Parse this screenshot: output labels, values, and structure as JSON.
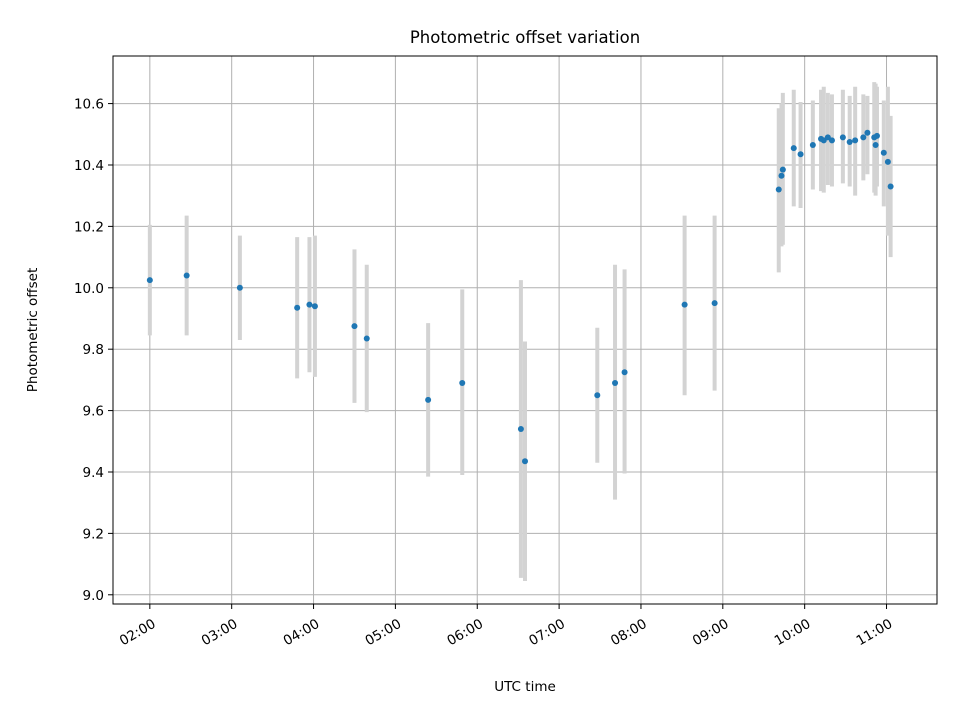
{
  "colors": {
    "point": "#1f77b4",
    "errorbar": "#d3d3d3",
    "grid": "#b0b0b0",
    "axes": "#000000",
    "background": "#ffffff"
  },
  "chart_data": {
    "type": "scatter",
    "title": "Photometric offset variation",
    "xlabel": "UTC time",
    "ylabel": "Photometric offset",
    "x_axis_type": "time",
    "xlim": [
      "01:33",
      "11:37"
    ],
    "ylim": [
      8.97,
      10.755
    ],
    "grid": true,
    "legend": "none",
    "x_ticks": [
      "02:00",
      "03:00",
      "04:00",
      "05:00",
      "06:00",
      "07:00",
      "08:00",
      "09:00",
      "10:00",
      "11:00"
    ],
    "y_ticks": [
      "9.0",
      "9.2",
      "9.4",
      "9.6",
      "9.8",
      "10.0",
      "10.2",
      "10.4",
      "10.6"
    ],
    "series": [
      {
        "points": [
          {
            "x": "02:00",
            "y": 10.025,
            "err_low": 9.845,
            "err_high": 10.205
          },
          {
            "x": "02:27",
            "y": 10.04,
            "err_low": 9.845,
            "err_high": 10.235
          },
          {
            "x": "03:06",
            "y": 10.0,
            "err_low": 9.83,
            "err_high": 10.17
          },
          {
            "x": "03:48",
            "y": 9.935,
            "err_low": 9.705,
            "err_high": 10.165
          },
          {
            "x": "03:57",
            "y": 9.945,
            "err_low": 9.725,
            "err_high": 10.165
          },
          {
            "x": "04:01",
            "y": 9.94,
            "err_low": 9.71,
            "err_high": 10.17
          },
          {
            "x": "04:30",
            "y": 9.875,
            "err_low": 9.625,
            "err_high": 10.125
          },
          {
            "x": "04:39",
            "y": 9.835,
            "err_low": 9.595,
            "err_high": 10.075
          },
          {
            "x": "05:24",
            "y": 9.635,
            "err_low": 9.385,
            "err_high": 9.885
          },
          {
            "x": "05:49",
            "y": 9.69,
            "err_low": 9.39,
            "err_high": 9.995
          },
          {
            "x": "06:32",
            "y": 9.54,
            "err_low": 9.055,
            "err_high": 10.025
          },
          {
            "x": "06:35",
            "y": 9.435,
            "err_low": 9.045,
            "err_high": 9.825
          },
          {
            "x": "07:28",
            "y": 9.65,
            "err_low": 9.43,
            "err_high": 9.87
          },
          {
            "x": "07:41",
            "y": 9.69,
            "err_low": 9.31,
            "err_high": 10.075
          },
          {
            "x": "07:48",
            "y": 9.725,
            "err_low": 9.395,
            "err_high": 10.06
          },
          {
            "x": "08:32",
            "y": 9.945,
            "err_low": 9.65,
            "err_high": 10.235
          },
          {
            "x": "08:54",
            "y": 9.95,
            "err_low": 9.665,
            "err_high": 10.235
          },
          {
            "x": "09:41",
            "y": 10.32,
            "err_low": 10.05,
            "err_high": 10.585
          },
          {
            "x": "09:43",
            "y": 10.365,
            "err_low": 10.135,
            "err_high": 10.6
          },
          {
            "x": "09:44",
            "y": 10.385,
            "err_low": 10.14,
            "err_high": 10.635
          },
          {
            "x": "09:52",
            "y": 10.455,
            "err_low": 10.265,
            "err_high": 10.645
          },
          {
            "x": "09:57",
            "y": 10.435,
            "err_low": 10.26,
            "err_high": 10.605
          },
          {
            "x": "10:06",
            "y": 10.465,
            "err_low": 10.32,
            "err_high": 10.61
          },
          {
            "x": "10:12",
            "y": 10.485,
            "err_low": 10.315,
            "err_high": 10.645
          },
          {
            "x": "10:14",
            "y": 10.48,
            "err_low": 10.31,
            "err_high": 10.655
          },
          {
            "x": "10:17",
            "y": 10.49,
            "err_low": 10.335,
            "err_high": 10.635
          },
          {
            "x": "10:20",
            "y": 10.48,
            "err_low": 10.33,
            "err_high": 10.63
          },
          {
            "x": "10:28",
            "y": 10.49,
            "err_low": 10.34,
            "err_high": 10.645
          },
          {
            "x": "10:33",
            "y": 10.475,
            "err_low": 10.33,
            "err_high": 10.625
          },
          {
            "x": "10:37",
            "y": 10.48,
            "err_low": 10.3,
            "err_high": 10.655
          },
          {
            "x": "10:43",
            "y": 10.49,
            "err_low": 10.35,
            "err_high": 10.63
          },
          {
            "x": "10:46",
            "y": 10.505,
            "err_low": 10.37,
            "err_high": 10.625
          },
          {
            "x": "10:51",
            "y": 10.49,
            "err_low": 10.31,
            "err_high": 10.67
          },
          {
            "x": "10:52",
            "y": 10.465,
            "err_low": 10.3,
            "err_high": 10.665
          },
          {
            "x": "10:53",
            "y": 10.495,
            "err_low": 10.33,
            "err_high": 10.655
          },
          {
            "x": "10:58",
            "y": 10.44,
            "err_low": 10.265,
            "err_high": 10.61
          },
          {
            "x": "11:01",
            "y": 10.41,
            "err_low": 10.17,
            "err_high": 10.655
          },
          {
            "x": "11:03",
            "y": 10.33,
            "err_low": 10.1,
            "err_high": 10.56
          }
        ]
      }
    ]
  }
}
